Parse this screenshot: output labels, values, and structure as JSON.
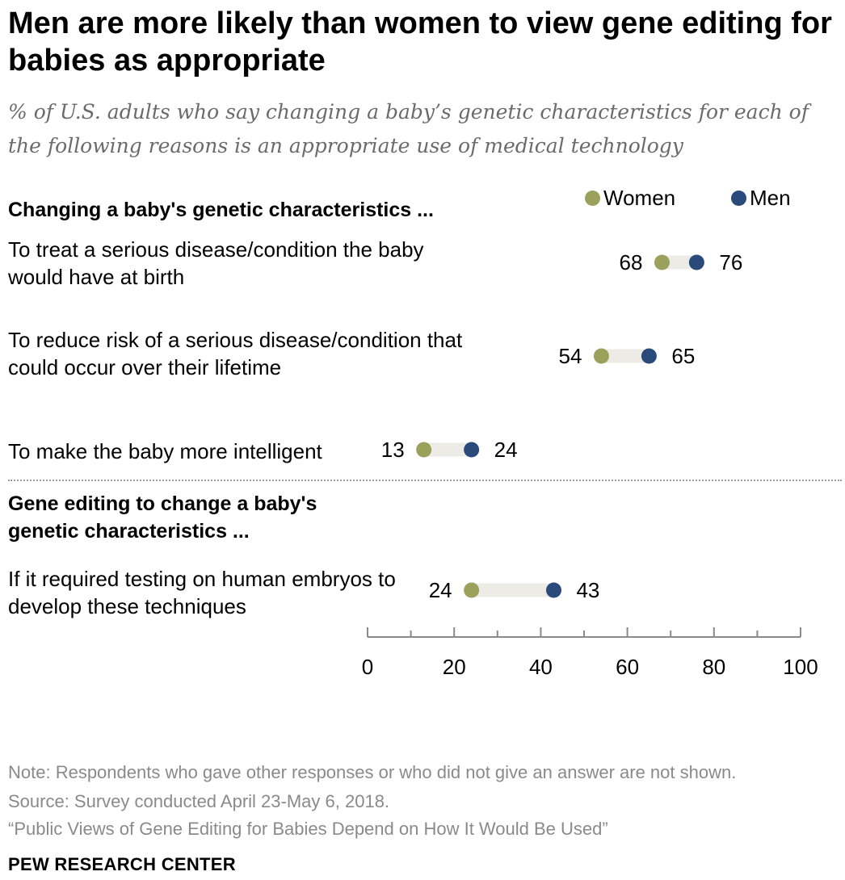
{
  "title": "Men are more likely than women to view gene editing for babies as appropriate",
  "subtitle": "% of U.S. adults who say changing a baby’s genetic characteristics for each of the following reasons is an appropriate use of medical technology",
  "legend": [
    {
      "name": "Women",
      "color": "#9ba05a"
    },
    {
      "name": "Men",
      "color": "#2a4a7b"
    }
  ],
  "sections": [
    {
      "heading": "Changing a baby's genetic characteristics ..."
    },
    {
      "heading": "Gene editing to change a baby's genetic characteristics ..."
    }
  ],
  "chart_data": {
    "type": "dot",
    "xlim": [
      0,
      100
    ],
    "x_ticks": [
      "0",
      "20",
      "40",
      "60",
      "80",
      "100"
    ],
    "series_names": [
      "Women",
      "Men"
    ],
    "colors": {
      "Women": "#9ba05a",
      "Men": "#2a4a7b",
      "connector": "#ecebe6"
    },
    "rows": [
      {
        "label": "To treat a serious disease/condition the baby would have at birth",
        "section": 0,
        "women": 68,
        "men": 76
      },
      {
        "label": "To reduce risk of a serious disease/condition that could occur over their lifetime",
        "section": 0,
        "women": 54,
        "men": 65
      },
      {
        "label": "To make the baby more intelligent",
        "section": 0,
        "women": 13,
        "men": 24
      },
      {
        "label": "If it required testing on human embryos to develop these techniques",
        "section": 1,
        "women": 24,
        "men": 43
      }
    ]
  },
  "footer": {
    "note": "Note: Respondents who gave other responses or who did not give an answer are not shown.",
    "source": "Source: Survey conducted April 23-May 6, 2018.",
    "report": "“Public Views of Gene Editing for Babies Depend on How It Would Be Used”",
    "brand": "PEW RESEARCH CENTER"
  }
}
